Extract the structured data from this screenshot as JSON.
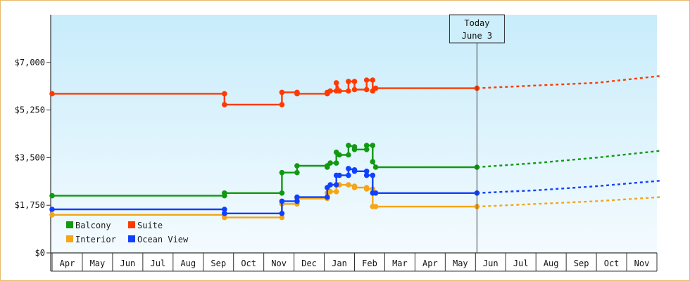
{
  "chart_data": {
    "type": "line",
    "y_axis": {
      "min": 0,
      "max": 8750,
      "ticks": [
        {
          "value": 0,
          "label": "$0"
        },
        {
          "value": 1750,
          "label": "$1,750"
        },
        {
          "value": 3500,
          "label": "$3,500"
        },
        {
          "value": 5250,
          "label": "$5,250"
        },
        {
          "value": 7000,
          "label": "$7,000"
        }
      ]
    },
    "x_axis": {
      "months": [
        "Apr",
        "May",
        "Jun",
        "Jul",
        "Aug",
        "Sep",
        "Oct",
        "Nov",
        "Dec",
        "Jan",
        "Feb",
        "Mar",
        "Apr",
        "May",
        "Jun",
        "Jul",
        "Aug",
        "Sep",
        "Oct",
        "Nov"
      ]
    },
    "today_marker": {
      "line1": "Today",
      "line2": "June 3",
      "x": 14.05
    },
    "grid": false,
    "legend_placement": "bottom-left",
    "series": [
      {
        "name": "Suite",
        "color": "#ff3a00",
        "history": [
          [
            0,
            5850
          ],
          [
            5.7,
            5850
          ],
          [
            5.7,
            5450
          ],
          [
            7.6,
            5450
          ],
          [
            7.6,
            5900
          ],
          [
            8.1,
            5900
          ],
          [
            8.1,
            5850
          ],
          [
            9.1,
            5850
          ],
          [
            9.1,
            5900
          ],
          [
            9.2,
            5950
          ],
          [
            9.4,
            5950
          ],
          [
            9.4,
            6250
          ],
          [
            9.5,
            5950
          ],
          [
            9.8,
            5950
          ],
          [
            9.8,
            6300
          ],
          [
            10.0,
            6300
          ],
          [
            10.0,
            6000
          ],
          [
            10.4,
            6000
          ],
          [
            10.4,
            6350
          ],
          [
            10.6,
            6350
          ],
          [
            10.6,
            5950
          ],
          [
            10.7,
            6050
          ],
          [
            14.05,
            6050
          ]
        ],
        "forecast": [
          [
            14.05,
            6050
          ],
          [
            16,
            6150
          ],
          [
            18,
            6250
          ],
          [
            20.1,
            6500
          ]
        ]
      },
      {
        "name": "Balcony",
        "color": "#119911",
        "history": [
          [
            0,
            2100
          ],
          [
            5.7,
            2100
          ],
          [
            5.7,
            2200
          ],
          [
            7.6,
            2200
          ],
          [
            7.6,
            2950
          ],
          [
            8.1,
            2950
          ],
          [
            8.1,
            3200
          ],
          [
            9.1,
            3200
          ],
          [
            9.1,
            3150
          ],
          [
            9.2,
            3300
          ],
          [
            9.4,
            3300
          ],
          [
            9.4,
            3700
          ],
          [
            9.5,
            3600
          ],
          [
            9.8,
            3600
          ],
          [
            9.8,
            3950
          ],
          [
            10.0,
            3900
          ],
          [
            10.0,
            3800
          ],
          [
            10.4,
            3800
          ],
          [
            10.4,
            3950
          ],
          [
            10.6,
            3950
          ],
          [
            10.6,
            3350
          ],
          [
            10.7,
            3150
          ],
          [
            14.05,
            3150
          ]
        ],
        "forecast": [
          [
            14.05,
            3150
          ],
          [
            16,
            3300
          ],
          [
            18,
            3500
          ],
          [
            20.1,
            3750
          ]
        ]
      },
      {
        "name": "Ocean View",
        "color": "#1040ff",
        "history": [
          [
            0,
            1600
          ],
          [
            5.7,
            1600
          ],
          [
            5.7,
            1450
          ],
          [
            7.6,
            1450
          ],
          [
            7.6,
            1900
          ],
          [
            8.1,
            1900
          ],
          [
            8.1,
            2050
          ],
          [
            9.1,
            2050
          ],
          [
            9.1,
            2400
          ],
          [
            9.2,
            2500
          ],
          [
            9.4,
            2500
          ],
          [
            9.4,
            2850
          ],
          [
            9.5,
            2850
          ],
          [
            9.8,
            2850
          ],
          [
            9.8,
            3100
          ],
          [
            10.0,
            3050
          ],
          [
            10.0,
            3000
          ],
          [
            10.4,
            3000
          ],
          [
            10.4,
            2850
          ],
          [
            10.6,
            2850
          ],
          [
            10.6,
            2200
          ],
          [
            10.7,
            2200
          ],
          [
            14.05,
            2200
          ]
        ],
        "forecast": [
          [
            14.05,
            2200
          ],
          [
            16,
            2300
          ],
          [
            18,
            2450
          ],
          [
            20.1,
            2650
          ]
        ]
      },
      {
        "name": "Interior",
        "color": "#f5a516",
        "history": [
          [
            0,
            1400
          ],
          [
            5.7,
            1400
          ],
          [
            5.7,
            1300
          ],
          [
            7.6,
            1300
          ],
          [
            7.6,
            1800
          ],
          [
            8.1,
            1800
          ],
          [
            8.1,
            2000
          ],
          [
            9.1,
            2000
          ],
          [
            9.1,
            2200
          ],
          [
            9.2,
            2250
          ],
          [
            9.4,
            2250
          ],
          [
            9.4,
            2500
          ],
          [
            9.5,
            2500
          ],
          [
            9.8,
            2500
          ],
          [
            9.8,
            2500
          ],
          [
            10.0,
            2450
          ],
          [
            10.0,
            2400
          ],
          [
            10.4,
            2400
          ],
          [
            10.4,
            2350
          ],
          [
            10.6,
            2350
          ],
          [
            10.6,
            1700
          ],
          [
            10.7,
            1700
          ],
          [
            14.05,
            1700
          ]
        ],
        "forecast": [
          [
            14.05,
            1700
          ],
          [
            16,
            1800
          ],
          [
            18,
            1900
          ],
          [
            20.1,
            2050
          ]
        ]
      }
    ],
    "legend": [
      {
        "label": "Balcony",
        "color": "#119911"
      },
      {
        "label": "Suite",
        "color": "#ff3a00"
      },
      {
        "label": "Interior",
        "color": "#f5a516"
      },
      {
        "label": "Ocean View",
        "color": "#1040ff"
      }
    ]
  }
}
